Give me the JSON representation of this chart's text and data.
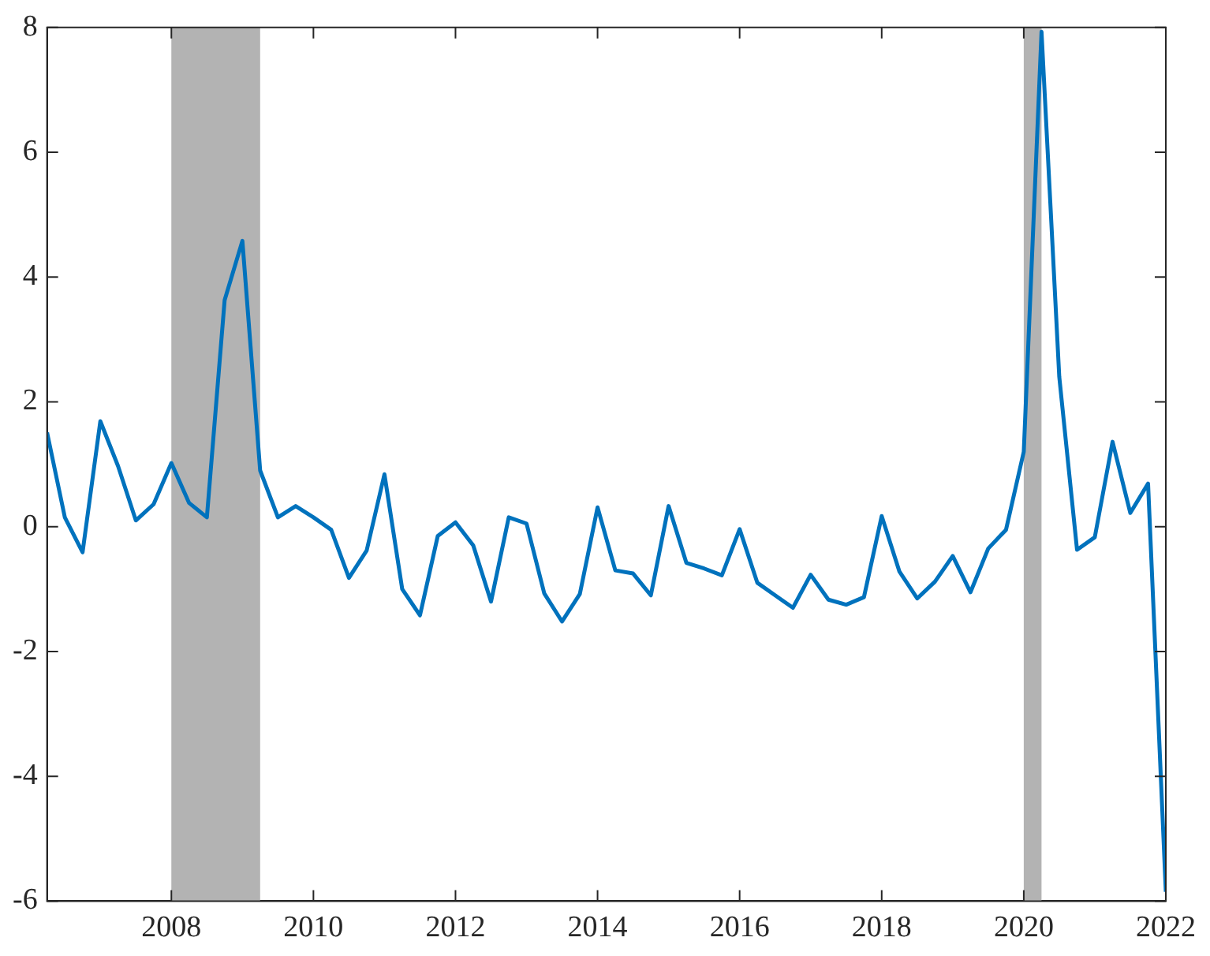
{
  "chart_data": {
    "type": "line",
    "x": [
      2006.25,
      2006.5,
      2006.75,
      2007,
      2007.25,
      2007.5,
      2007.75,
      2008,
      2008.25,
      2008.5,
      2008.75,
      2009,
      2009.25,
      2009.5,
      2009.75,
      2010,
      2010.25,
      2010.5,
      2010.75,
      2011,
      2011.25,
      2011.5,
      2011.75,
      2012,
      2012.25,
      2012.5,
      2012.75,
      2013,
      2013.25,
      2013.5,
      2013.75,
      2014,
      2014.25,
      2014.5,
      2014.75,
      2015,
      2015.25,
      2015.5,
      2015.75,
      2016,
      2016.25,
      2016.5,
      2016.75,
      2017,
      2017.25,
      2017.5,
      2017.75,
      2018,
      2018.25,
      2018.5,
      2018.75,
      2019,
      2019.25,
      2019.5,
      2019.75,
      2020,
      2020.25,
      2020.5,
      2020.75,
      2021,
      2021.25,
      2021.5,
      2021.75,
      2022
    ],
    "series": [
      {
        "color": "#0072bd",
        "values": [
          1.51,
          0.15,
          -0.41,
          1.69,
          0.97,
          0.1,
          0.36,
          1.02,
          0.38,
          0.15,
          3.63,
          4.58,
          0.9,
          0.15,
          0.33,
          0.15,
          -0.05,
          -0.82,
          -0.38,
          0.84,
          -1.0,
          -1.42,
          -0.15,
          0.07,
          -0.3,
          -1.2,
          0.15,
          0.05,
          -1.07,
          -1.52,
          -1.08,
          0.31,
          -0.7,
          -0.75,
          -1.1,
          0.33,
          -0.58,
          -0.67,
          -0.78,
          -0.04,
          -0.9,
          -1.1,
          -1.3,
          -0.77,
          -1.17,
          -1.25,
          -1.13,
          0.17,
          -0.72,
          -1.15,
          -0.88,
          -0.47,
          -1.05,
          -0.35,
          -0.05,
          1.2,
          7.93,
          2.4,
          -0.37,
          -0.17,
          1.36,
          0.22,
          0.69,
          -5.85
        ]
      }
    ],
    "bands": [
      {
        "axis": "x",
        "from": 2008,
        "to": 2009.25,
        "color": "#b3b3b3"
      },
      {
        "axis": "x",
        "from": 2020,
        "to": 2020.25,
        "color": "#b3b3b3"
      }
    ],
    "xlim": [
      2006.25,
      2022
    ],
    "xticks": [
      2008,
      2010,
      2012,
      2014,
      2016,
      2018,
      2020,
      2022
    ],
    "ylim": [
      -6,
      8
    ],
    "yticks": [
      -6,
      -4,
      -2,
      0,
      2,
      4,
      6,
      8
    ],
    "legend": false,
    "marker": "none",
    "line_style": "solid"
  }
}
